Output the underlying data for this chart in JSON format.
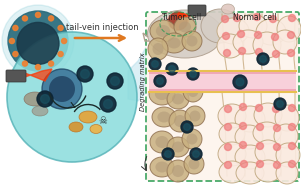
{
  "bg_color": "#ffffff",
  "arrow_color": "#e07820",
  "arrow_text": "tail-vein injection",
  "arrow_text_color": "#333333",
  "nanoparticle_color": "#2a6b7c",
  "nanoparticle_inner_color": "#1a3a4a",
  "cell_box_color": "#4aaa6a",
  "tumor_label": "Tumor cell",
  "normal_label": "Normal cell",
  "degrading_label": "Degrading matrix",
  "label_color": "#222222",
  "big_cell_color": "#8ad8dc",
  "vessel_color": "#f0a8b8",
  "vessel_edge_color": "#e8c050",
  "tumor_cell_face": "#c8b080",
  "tumor_cell_edge": "#907050",
  "normal_cell_face": "#faeae0",
  "normal_cell_edge": "#c0a880",
  "nanoparticle_dot_color": "#0a2535",
  "pink_dot_color": "#f08080",
  "orange_dot_color": "#f08030",
  "skull_color": "#1a1a1a",
  "device_color": "#555555",
  "beam_color": "#ff4422",
  "mouse_color": "#d5cdc5",
  "mouse_edge": "#b0a090"
}
